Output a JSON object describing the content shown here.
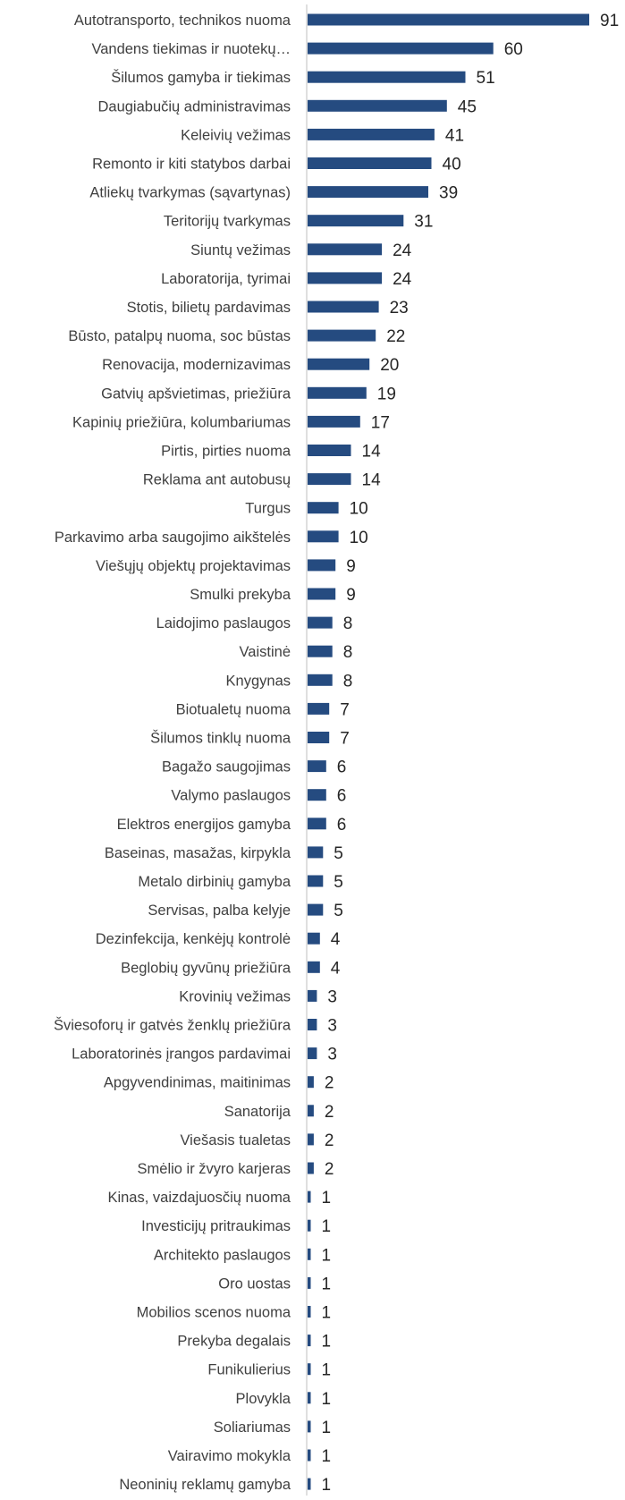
{
  "chart_data": {
    "type": "bar",
    "orientation": "horizontal",
    "bar_color": "#254b80",
    "grid": false,
    "legend": "none",
    "xlim": [
      0,
      91
    ],
    "categories": [
      "Autotransporto, technikos nuoma",
      "Vandens tiekimas ir nuotekų…",
      "Šilumos gamyba ir tiekimas",
      "Daugiabučių administravimas",
      "Keleivių vežimas",
      "Remonto ir kiti statybos darbai",
      "Atliekų  tvarkymas (sąvartynas)",
      "Teritorijų  tvarkymas",
      "Siuntų vežimas",
      "Laboratorija, tyrimai",
      "Stotis, bilietų pardavimas",
      "Būsto, patalpų nuoma, soc būstas",
      "Renovacija, modernizavimas",
      "Gatvių apšvietimas, priežiūra",
      "Kapinių priežiūra, kolumbariumas",
      "Pirtis, pirties nuoma",
      "Reklama ant autobusų",
      "Turgus",
      "Parkavimo arba saugojimo  aikštelės",
      "Viešųjų objektų projektavimas",
      "Smulki prekyba",
      "Laidojimo paslaugos",
      "Vaistinė",
      "Knygynas",
      "Biotualetų nuoma",
      "Šilumos  tinklų nuoma",
      "Bagažo saugojimas",
      "Valymo paslaugos",
      "Elektros energijos gamyba",
      "Baseinas, masažas, kirpykla",
      "Metalo dirbinių gamyba",
      "Servisas, palba kelyje",
      "Dezinfekcija, kenkėjų kontrolė",
      "Beglobių gyvūnų priežiūra",
      "Krovinių vežimas",
      "Šviesoforų ir gatvės ženklų priežiūra",
      "Laboratorinės įrangos pardavimai",
      "Apgyvendinimas, maitinimas",
      "Sanatorija",
      "Viešasis tualetas",
      "Smėlio ir žvyro karjeras",
      "Kinas, vaizdajuosčių nuoma",
      "Investicijų pritraukimas",
      "Architekto paslaugos",
      "Oro uostas",
      "Mobilios scenos nuoma",
      "Prekyba degalais",
      "Funikulierius",
      "Plovykla",
      "Soliariumas",
      "Vairavimo mokykla",
      "Neoninių reklamų gamyba"
    ],
    "values": [
      91,
      60,
      51,
      45,
      41,
      40,
      39,
      31,
      24,
      24,
      23,
      22,
      20,
      19,
      17,
      14,
      14,
      10,
      10,
      9,
      9,
      8,
      8,
      8,
      7,
      7,
      6,
      6,
      6,
      5,
      5,
      5,
      4,
      4,
      3,
      3,
      3,
      2,
      2,
      2,
      2,
      1,
      1,
      1,
      1,
      1,
      1,
      1,
      1,
      1,
      1,
      1
    ]
  }
}
